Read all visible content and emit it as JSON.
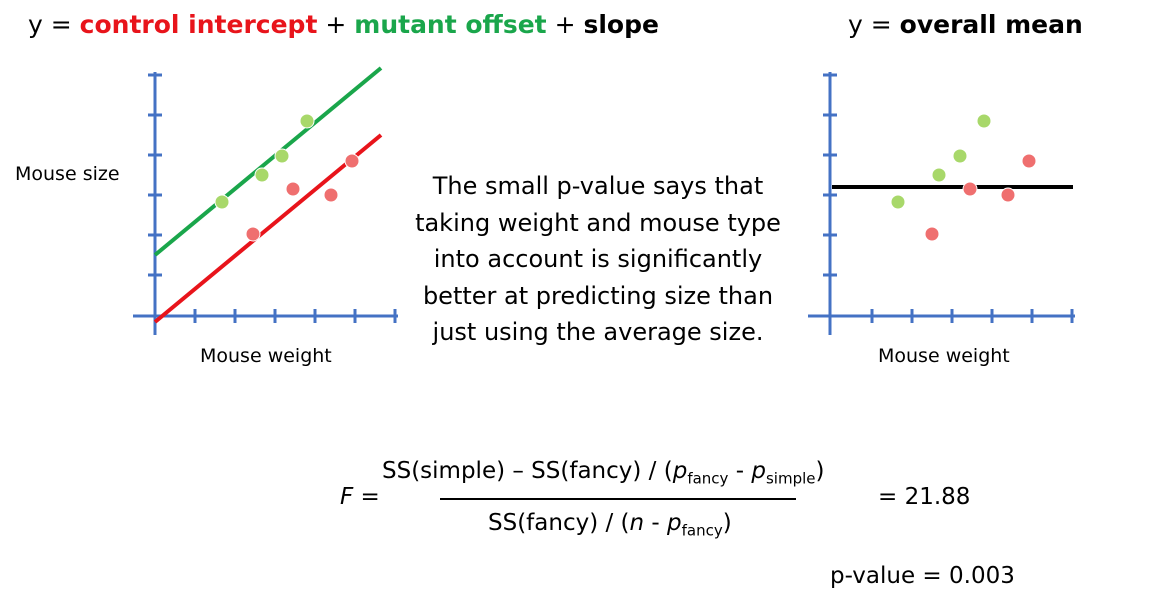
{
  "left_title": {
    "prefix": "y =",
    "term1": "control intercept",
    "plus1": "+",
    "term2": "mutant offset",
    "plus2": "+",
    "term3": "slope"
  },
  "right_title": {
    "prefix": "y =",
    "term": "overall mean"
  },
  "left_plot": {
    "y_label": "Mouse size",
    "x_label": "Mouse weight"
  },
  "right_plot": {
    "x_label": "Mouse weight"
  },
  "message": [
    "The small p-value says that",
    "taking weight and mouse type",
    "into account is significantly",
    "better at predicting size than",
    "just using the average size."
  ],
  "formula": {
    "lhs": "F =",
    "numerator": [
      "SS(simple) – SS(fancy) / (",
      "p",
      "fancy",
      "-",
      "p",
      "simple",
      ")"
    ],
    "denominator": [
      "SS(fancy) / (",
      "n",
      "-",
      "p",
      "fancy",
      ")"
    ],
    "result": "= 21.88",
    "p_value": "p-value = 0.003"
  }
}
